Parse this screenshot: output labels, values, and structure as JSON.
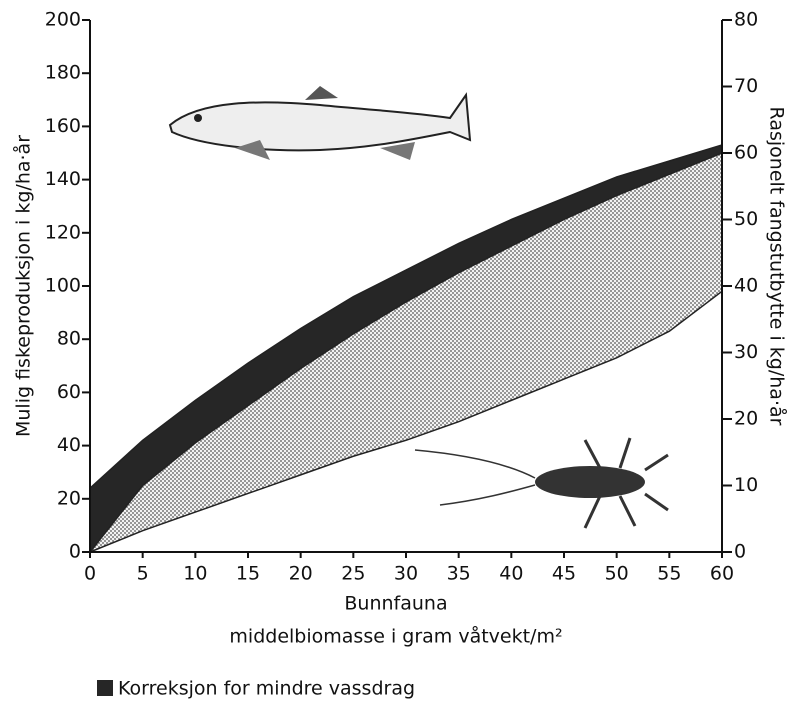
{
  "chart_data": {
    "type": "band",
    "x_label": [
      "Bunnfauna",
      "middelbiomasse i gram våtvekt/m²"
    ],
    "y_label": "Mulig fiskeproduksjon i kg/ha·år",
    "y2_label": "Rasjonelt fangstutbytte i kg/ha·år",
    "x": [
      0,
      5,
      10,
      15,
      20,
      25,
      30,
      35,
      40,
      45,
      50,
      55,
      60
    ],
    "series": [
      {
        "values": [
          0,
          8,
          15,
          22,
          29,
          36,
          42,
          49,
          57,
          65,
          73,
          83,
          98
        ]
      },
      {
        "values": [
          0,
          25,
          41,
          55,
          69,
          82,
          94,
          105,
          115,
          125,
          134,
          142,
          150
        ]
      },
      {
        "values": [
          24,
          42,
          57,
          71,
          84,
          96,
          106,
          116,
          125,
          133,
          141,
          147,
          153
        ]
      }
    ],
    "bands": [
      {
        "color": "dots",
        "from": 0,
        "to": 1
      },
      {
        "name": "Korreksjon for mindre vassdrag",
        "color": "#262626",
        "from": 1,
        "to": 2
      }
    ],
    "xlim": [
      0,
      60
    ],
    "xticks": [
      0,
      5,
      10,
      15,
      20,
      25,
      30,
      35,
      40,
      45,
      50,
      55,
      60
    ],
    "ylim": [
      0,
      200
    ],
    "yticks": [
      0,
      20,
      40,
      60,
      80,
      100,
      120,
      140,
      160,
      180,
      200
    ],
    "y2lim": [
      0,
      80
    ],
    "y2ticks": [
      0,
      10,
      20,
      30,
      40,
      50,
      60,
      70,
      80
    ]
  }
}
